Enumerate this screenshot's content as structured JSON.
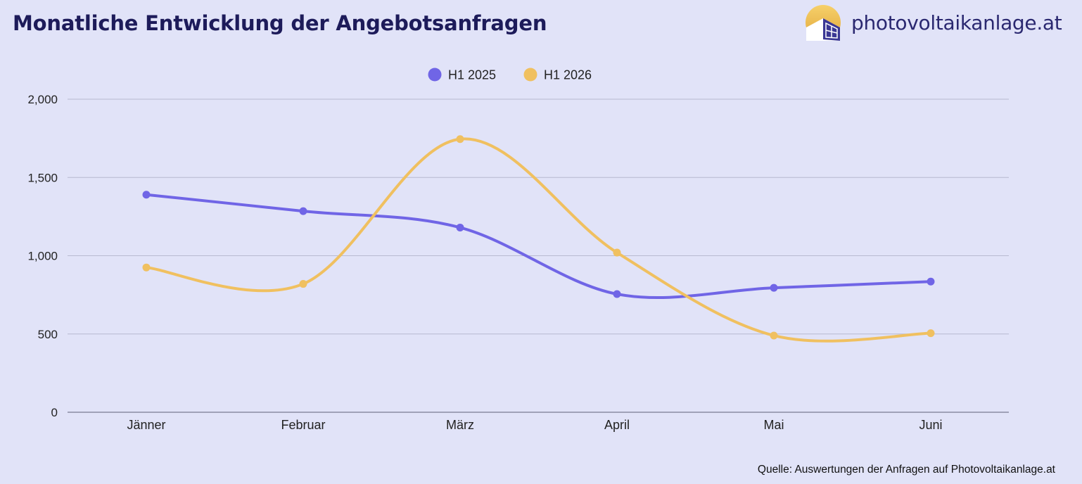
{
  "header": {
    "title": "Monatliche Entwicklung der Angebotsanfragen",
    "brand": "photovoltaikanlage.at",
    "logo_icon": "solar-house-logo-icon"
  },
  "footer": {
    "source": "Quelle: Auswertungen der Anfragen auf Photovoltaikanlage.at"
  },
  "colors": {
    "background": "#e1e3f8",
    "title": "#1d1b5a",
    "gridline": "#b8bad0",
    "axis": "#8a8ca3"
  },
  "chart_data": {
    "type": "line",
    "title": "Monatliche Entwicklung der Angebotsanfragen",
    "xlabel": "",
    "ylabel": "",
    "categories": [
      "Jänner",
      "Februar",
      "März",
      "April",
      "Mai",
      "Juni"
    ],
    "series": [
      {
        "name": "H1 2025",
        "color": "#7065e6",
        "values": [
          1390,
          1285,
          1180,
          755,
          795,
          835
        ]
      },
      {
        "name": "H1 2026",
        "color": "#f0c060",
        "values": [
          925,
          820,
          1745,
          1020,
          490,
          505
        ]
      }
    ],
    "ylim": [
      0,
      2000
    ],
    "yticks": [
      0,
      500,
      1000,
      1500,
      2000
    ],
    "ytick_labels": [
      "0",
      "500",
      "1,000",
      "1,500",
      "2,000"
    ],
    "grid": true,
    "smooth": true,
    "legend_position": "top-center"
  }
}
